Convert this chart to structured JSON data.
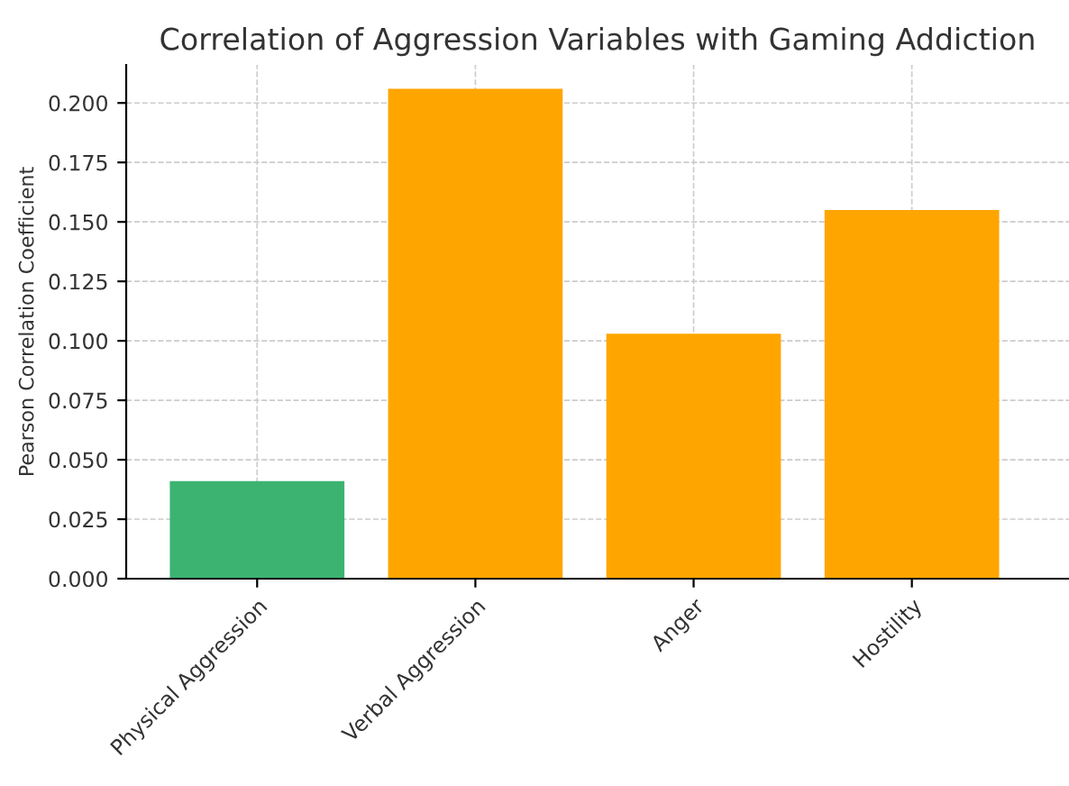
{
  "chart_data": {
    "type": "bar",
    "title": "Correlation of Aggression Variables with Gaming Addiction",
    "ylabel": "Pearson Correlation Coefficient",
    "categories": [
      "Physical Aggression",
      "Verbal Aggression",
      "Anger",
      "Hostility"
    ],
    "values": [
      0.041,
      0.206,
      0.103,
      0.155
    ],
    "colors": [
      "#3cb371",
      "#ffa500",
      "#ffa500",
      "#ffa500"
    ],
    "ylim": [
      0,
      0.216
    ],
    "yticks": [
      {
        "value": 0,
        "label": "0.000"
      },
      {
        "value": 0.025,
        "label": "0.025"
      },
      {
        "value": 0.05,
        "label": "0.050"
      },
      {
        "value": 0.075,
        "label": "0.075"
      },
      {
        "value": 0.1,
        "label": "0.100"
      },
      {
        "value": 0.125,
        "label": "0.125"
      },
      {
        "value": 0.15,
        "label": "0.150"
      },
      {
        "value": 0.175,
        "label": "0.175"
      },
      {
        "value": 0.2,
        "label": "0.200"
      }
    ],
    "grid": true
  }
}
